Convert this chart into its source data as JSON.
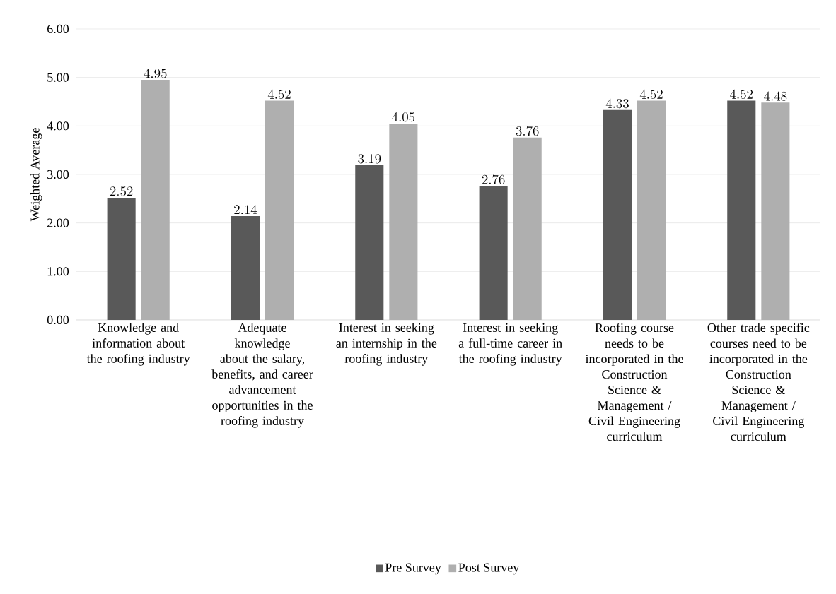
{
  "chart_data": {
    "type": "bar",
    "ylabel": "Weighted Average",
    "categories": [
      "Knowledge and information about the roofing industry",
      "Adequate knowledge about the salary, benefits, and career advancement opportunities in the roofing industry",
      "Interest in seeking an internship in the roofing industry",
      "Interest in seeking a full-time career in the roofing industry",
      "Roofing course needs to be incorporated in the Construction Science & Management / Civil Engineering curriculum",
      "Other trade specific courses need to be incorporated in the Construction Science & Management / Civil Engineering curriculum"
    ],
    "series": [
      {
        "name": "Pre Survey",
        "color": "#595959",
        "values": [
          2.52,
          2.14,
          3.19,
          2.76,
          4.33,
          4.52
        ]
      },
      {
        "name": "Post Survey",
        "color": "#afafaf",
        "values": [
          4.95,
          4.52,
          4.05,
          3.76,
          4.52,
          4.48
        ]
      }
    ],
    "ylim": [
      0,
      6
    ],
    "yticks": [
      {
        "value": 0,
        "label": "0.00"
      },
      {
        "value": 1,
        "label": "1.00"
      },
      {
        "value": 2,
        "label": "2.00"
      },
      {
        "value": 3,
        "label": "3.00"
      },
      {
        "value": 4,
        "label": "4.00"
      },
      {
        "value": 5,
        "label": "5.00"
      },
      {
        "value": 6,
        "label": "6.00"
      }
    ],
    "grid": "y",
    "legend": "bottom",
    "data_labels": true
  }
}
